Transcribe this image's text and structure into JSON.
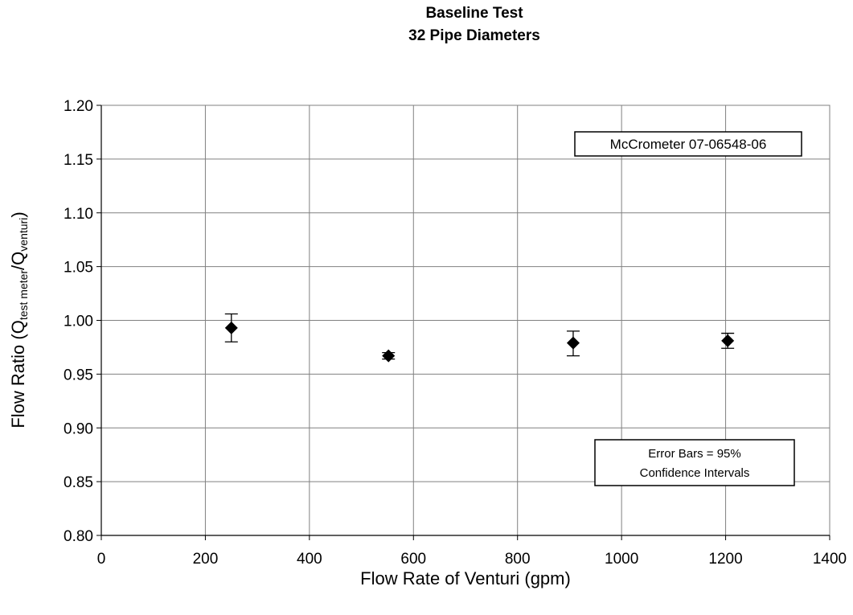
{
  "chart_data": {
    "type": "scatter",
    "title": "Baseline Test",
    "subtitle": "32 Pipe Diameters",
    "xlabel": "Flow Rate of Venturi (gpm)",
    "ylabel": {
      "main": "Flow Ratio (Q",
      "sub1": "test meter",
      "mid": "/Q",
      "sub2": "venturi",
      "end": ")"
    },
    "xlim": [
      0,
      1400
    ],
    "ylim": [
      0.8,
      1.2
    ],
    "x_ticks": [
      "0",
      "200",
      "400",
      "600",
      "800",
      "1000",
      "1200",
      "1400"
    ],
    "y_ticks": [
      "0.80",
      "0.85",
      "0.90",
      "0.95",
      "1.00",
      "1.05",
      "1.10",
      "1.15",
      "1.20"
    ],
    "grid": true,
    "marker": "diamond",
    "points": [
      {
        "x": 250,
        "y": 0.993,
        "err_low": 0.98,
        "err_high": 1.006
      },
      {
        "x": 552,
        "y": 0.967,
        "err_low": 0.964,
        "err_high": 0.97
      },
      {
        "x": 907,
        "y": 0.979,
        "err_low": 0.967,
        "err_high": 0.99
      },
      {
        "x": 1204,
        "y": 0.981,
        "err_low": 0.974,
        "err_high": 0.988
      }
    ],
    "annotations": [
      {
        "name": "meter-label",
        "lines": [
          "McCrometer 07-06548-06"
        ]
      },
      {
        "name": "error-bars-note",
        "lines": [
          "Error Bars = 95%",
          "Confidence Intervals"
        ]
      }
    ]
  }
}
